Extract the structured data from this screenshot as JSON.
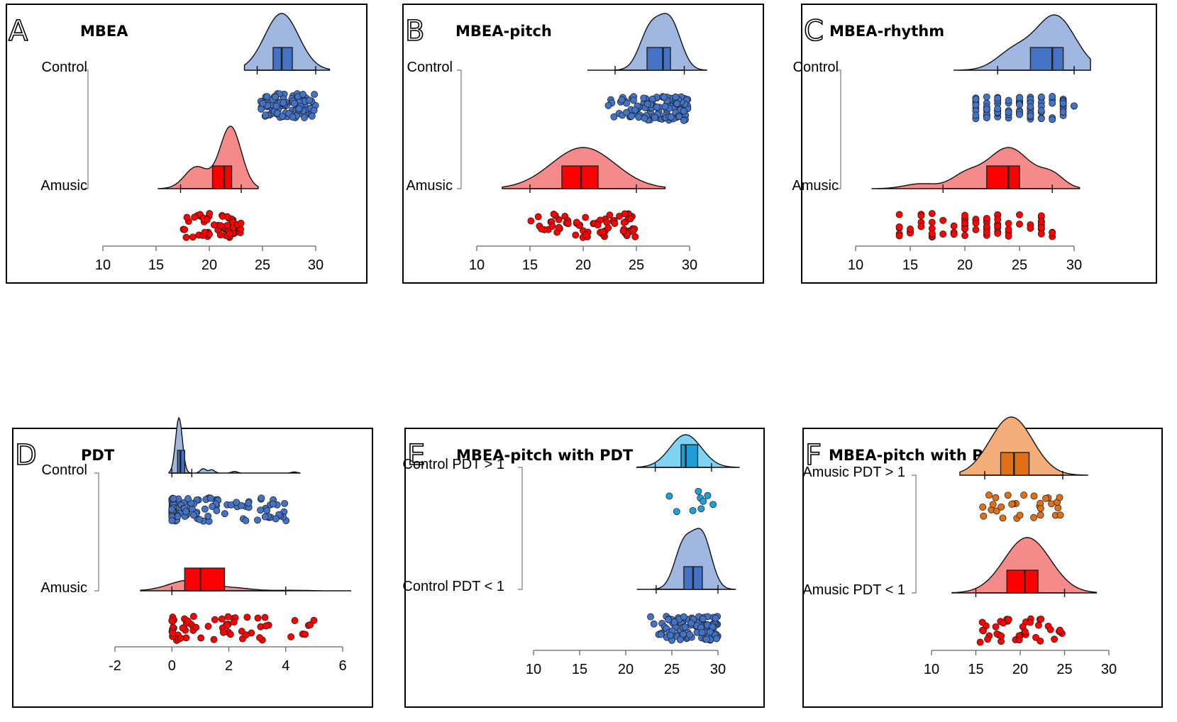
{
  "chart_data": [
    {
      "letter": "A",
      "title": "MBEA",
      "type": "raincloud",
      "xlim": [
        10,
        30
      ],
      "ticks": [
        10,
        15,
        20,
        25,
        30
      ],
      "groups": [
        {
          "label": "Control",
          "color": "#4472c4",
          "fill": "#9fb6e0",
          "box": {
            "min": 24.5,
            "q1": 26,
            "median": 26.8,
            "q3": 27.8,
            "max": 30
          },
          "kde_range": [
            23.3,
            31.3
          ],
          "kde_peaks": [
            {
              "mu": 26.8,
              "sd": 1.6,
              "w": 1
            }
          ],
          "points": {
            "n": 110,
            "min": 24.8,
            "max": 30,
            "jitter": "even"
          }
        },
        {
          "label": "Amusic",
          "color": "#ff0000",
          "fill": "#f58a8a",
          "box": {
            "min": 17.3,
            "q1": 20.3,
            "median": 21.4,
            "q3": 22.1,
            "max": 23
          },
          "kde_range": [
            15.2,
            24.6
          ],
          "kde_peaks": [
            {
              "mu": 22,
              "sd": 1.0,
              "w": 1
            },
            {
              "mu": 18.8,
              "sd": 1.1,
              "w": 0.35
            }
          ],
          "points": {
            "n": 60,
            "min": 16.9,
            "max": 23,
            "jitter": "skewhigh"
          }
        }
      ]
    },
    {
      "letter": "B",
      "title": "MBEA-pitch",
      "type": "raincloud",
      "xlim": [
        10,
        30
      ],
      "ticks": [
        10,
        15,
        20,
        25,
        30
      ],
      "groups": [
        {
          "label": "Control",
          "color": "#4472c4",
          "fill": "#9fb6e0",
          "box": {
            "min": 23,
            "q1": 26,
            "median": 27.5,
            "q3": 28.2,
            "max": 29.5
          },
          "kde_range": [
            20.4,
            31.6
          ],
          "kde_peaks": [
            {
              "mu": 26.3,
              "sd": 1.0,
              "w": 0.85
            },
            {
              "mu": 28.2,
              "sd": 1.0,
              "w": 1
            }
          ],
          "points": {
            "n": 110,
            "min": 22,
            "max": 30,
            "jitter": "skewhigh"
          }
        },
        {
          "label": "Amusic",
          "color": "#ff0000",
          "fill": "#f58a8a",
          "box": {
            "min": 15,
            "q1": 18,
            "median": 19.8,
            "q3": 21.4,
            "max": 25
          },
          "kde_range": [
            12.4,
            27.7
          ],
          "kde_peaks": [
            {
              "mu": 20,
              "sd": 3.0,
              "w": 1
            }
          ],
          "points": {
            "n": 70,
            "min": 15,
            "max": 25,
            "jitter": "even"
          }
        }
      ]
    },
    {
      "letter": "C",
      "title": "MBEA-rhythm",
      "type": "raincloud",
      "xlim": [
        10,
        30
      ],
      "ticks": [
        10,
        15,
        20,
        25,
        30
      ],
      "groups": [
        {
          "label": "Control",
          "color": "#4472c4",
          "fill": "#9fb6e0",
          "box": {
            "min": 23,
            "q1": 26,
            "median": 28,
            "q3": 29,
            "max": 30
          },
          "kde_range": [
            19,
            31.5
          ],
          "kde_peaks": [
            {
              "mu": 28.3,
              "sd": 1.8,
              "w": 1
            },
            {
              "mu": 24.5,
              "sd": 1.6,
              "w": 0.35
            }
          ],
          "points": {
            "n": 95,
            "min": 21,
            "max": 30,
            "jitter": "discrete"
          }
        },
        {
          "label": "Amusic",
          "color": "#ff0000",
          "fill": "#f58a8a",
          "box": {
            "min": 18,
            "q1": 22,
            "median": 24,
            "q3": 25,
            "max": 28
          },
          "kde_range": [
            11.5,
            30.5
          ],
          "kde_peaks": [
            {
              "mu": 24,
              "sd": 2.0,
              "w": 1
            },
            {
              "mu": 20,
              "sd": 1.3,
              "w": 0.3
            },
            {
              "mu": 16,
              "sd": 1.5,
              "w": 0.12
            },
            {
              "mu": 28,
              "sd": 1.1,
              "w": 0.3
            }
          ],
          "points": {
            "n": 80,
            "min": 14,
            "max": 28,
            "jitter": "discrete"
          }
        }
      ]
    },
    {
      "letter": "D",
      "title": "PDT",
      "type": "raincloud",
      "xlim": [
        -2,
        6
      ],
      "ticks": [
        -2,
        0,
        2,
        4,
        6
      ],
      "groups": [
        {
          "label": "Control",
          "color": "#4472c4",
          "fill": "#9fb6e0",
          "box": {
            "min": 0,
            "q1": 0.2,
            "median": 0.3,
            "q3": 0.45,
            "max": 0.7
          },
          "kde_range": [
            -0.1,
            4.5
          ],
          "kde_peaks": [
            {
              "mu": 0.25,
              "sd": 0.12,
              "w": 1
            },
            {
              "mu": 1.1,
              "sd": 0.1,
              "w": 0.08
            },
            {
              "mu": 1.4,
              "sd": 0.1,
              "w": 0.06
            },
            {
              "mu": 2.2,
              "sd": 0.1,
              "w": 0.03
            },
            {
              "mu": 4.3,
              "sd": 0.1,
              "w": 0.02
            }
          ],
          "points": {
            "n": 110,
            "min": 0,
            "max": 4.35,
            "jitter": "skewlow"
          }
        },
        {
          "label": "Amusic",
          "color": "#ff0000",
          "fill": "#f58a8a",
          "box": {
            "min": 0,
            "q1": 0.45,
            "median": 1.0,
            "q3": 1.85,
            "max": 4
          },
          "kde_range": [
            -1.1,
            6.3
          ],
          "kde_peaks": [
            {
              "mu": 0.6,
              "sd": 0.7,
              "w": 1
            },
            {
              "mu": 2.2,
              "sd": 0.6,
              "w": 0.25
            },
            {
              "mu": 4.2,
              "sd": 0.6,
              "w": 0.05
            }
          ],
          "points": {
            "n": 65,
            "min": 0,
            "max": 5.0,
            "jitter": "skewlow"
          }
        }
      ]
    },
    {
      "letter": "E",
      "title": "MBEA-pitch with PDT",
      "type": "raincloud",
      "xlim": [
        10,
        30
      ],
      "ticks": [
        10,
        15,
        20,
        25,
        30
      ],
      "groups": [
        {
          "label": "Control PDT > 1",
          "color": "#1e9fd8",
          "fill": "#7fd3f2",
          "box": {
            "min": 23.2,
            "q1": 26,
            "median": 26.5,
            "q3": 27.8,
            "max": 29.3
          },
          "kde_range": [
            21.2,
            32.3
          ],
          "kde_peaks": [
            {
              "mu": 26.5,
              "sd": 1.7,
              "w": 1
            }
          ],
          "points": {
            "n": 9,
            "min": 23.2,
            "max": 29.5,
            "jitter": "even"
          }
        },
        {
          "label": "Control PDT < 1",
          "color": "#4472c4",
          "fill": "#9fb6e0",
          "box": {
            "min": 23.3,
            "q1": 26.3,
            "median": 27.3,
            "q3": 28.3,
            "max": 30
          },
          "kde_range": [
            21.2,
            31.9
          ],
          "kde_peaks": [
            {
              "mu": 26.3,
              "sd": 1.0,
              "w": 0.85
            },
            {
              "mu": 28.3,
              "sd": 1.0,
              "w": 1
            }
          ],
          "points": {
            "n": 110,
            "min": 22.4,
            "max": 30,
            "jitter": "skewhigh"
          }
        }
      ]
    },
    {
      "letter": "F",
      "title": "MBEA-pitch with PDT",
      "type": "raincloud",
      "xlim": [
        10,
        30
      ],
      "ticks": [
        10,
        15,
        20,
        25,
        30
      ],
      "groups": [
        {
          "label": "Amusic PDT > 1",
          "color": "#e07016",
          "fill": "#f2ad78",
          "box": {
            "min": 16,
            "q1": 17.8,
            "median": 19.3,
            "q3": 21,
            "max": 24.8
          },
          "kde_range": [
            13.2,
            27.6
          ],
          "kde_peaks": [
            {
              "mu": 19,
              "sd": 2.4,
              "w": 1
            }
          ],
          "points": {
            "n": 30,
            "min": 15.5,
            "max": 24.8,
            "jitter": "even"
          }
        },
        {
          "label": "Amusic PDT < 1",
          "color": "#ff0000",
          "fill": "#f58a8a",
          "box": {
            "min": 15,
            "q1": 18.5,
            "median": 20.5,
            "q3": 22,
            "max": 25
          },
          "kde_range": [
            12.3,
            28.6
          ],
          "kde_peaks": [
            {
              "mu": 20.8,
              "sd": 2.6,
              "w": 1
            }
          ],
          "points": {
            "n": 40,
            "min": 15,
            "max": 25,
            "jitter": "even"
          }
        }
      ]
    }
  ]
}
